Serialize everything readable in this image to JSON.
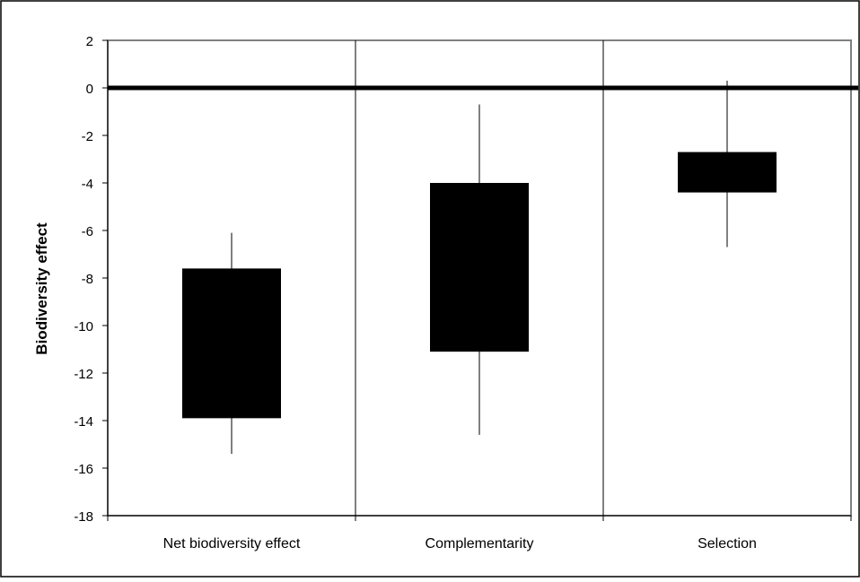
{
  "chart_data": {
    "type": "box",
    "categories": [
      "Net biodiversity effect",
      "Complementarity",
      "Selection"
    ],
    "boxes": [
      {
        "category": "Net biodiversity effect",
        "whisker_low": -15.4,
        "box_low": -13.9,
        "box_high": -7.6,
        "whisker_high": -6.1
      },
      {
        "category": "Complementarity",
        "whisker_low": -14.6,
        "box_low": -11.1,
        "box_high": -4.0,
        "whisker_high": -0.7
      },
      {
        "category": "Selection",
        "whisker_low": -6.7,
        "box_low": -4.4,
        "box_high": -2.7,
        "whisker_high": 0.3
      }
    ],
    "ylabel": "Biodiversity effect",
    "xlabel": "",
    "ylim": [
      -18,
      2
    ],
    "yticks": [
      2,
      0,
      -2,
      -4,
      -6,
      -8,
      -10,
      -12,
      -14,
      -16,
      -18
    ],
    "reference_line": 0,
    "grid": false,
    "colors": {
      "box": "#000000",
      "plot_border": "#808080",
      "background": "#ffffff",
      "frame": "#000000"
    }
  }
}
